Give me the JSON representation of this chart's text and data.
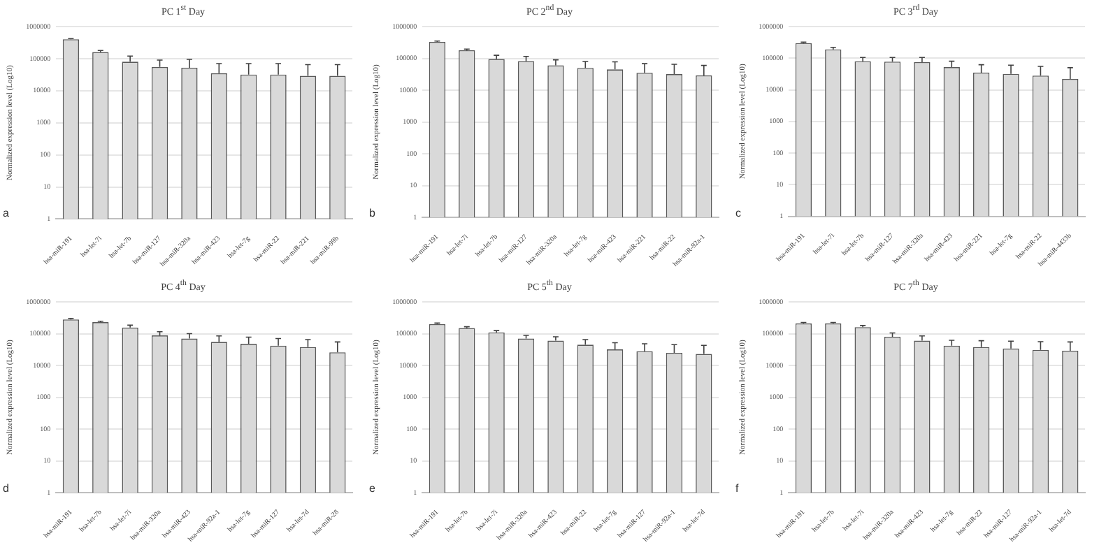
{
  "chart_data": [
    {
      "type": "bar",
      "title": "PC 1$^{st}$ Day",
      "ylabel": "Normalized expression level (Log10)",
      "annotations": [
        "a"
      ],
      "categories": [
        "hsa-miR-191",
        "hsa-let-7i",
        "hsa-let-7b",
        "hsa-miR-127",
        "hsa-miR-320a",
        "hsa-miR-423",
        "hsa-let-7g",
        "hsa-miR-22",
        "hsa-miR-221",
        "hsa-miR-99b"
      ],
      "values": [
        400000,
        160000,
        80000,
        55000,
        52000,
        35000,
        32000,
        32000,
        29000,
        29000
      ],
      "errors": [
        [
          400000,
          420000
        ],
        [
          160000,
          180000
        ],
        [
          80000,
          120000
        ],
        [
          55000,
          90000
        ],
        [
          52000,
          95000
        ],
        [
          35000,
          70000
        ],
        [
          32000,
          70000
        ],
        [
          32000,
          70000
        ],
        [
          29000,
          65000
        ],
        [
          29000,
          65000
        ]
      ],
      "color": "#d9d9d9",
      "log": true,
      "ylim": [
        1,
        1000000
      ],
      "yticks": [
        1,
        10,
        100,
        1000,
        10000,
        100000,
        1000000
      ],
      "grid": "y",
      "legend": false
    },
    {
      "type": "bar",
      "title": "PC 2$^{nd}$ Day",
      "ylabel": "Normalized expression level (Log10)",
      "annotations": [
        "b"
      ],
      "categories": [
        "hsa-miR-191",
        "hsa-let-7i",
        "hsa-let-7b",
        "hsa-miR-127",
        "hsa-miR-320a",
        "hsa-let-7g",
        "hsa-miR-423",
        "hsa-miR-221",
        "hsa-miR-22",
        "hsa-miR-92a-1"
      ],
      "values": [
        330000,
        180000,
        95000,
        82000,
        60000,
        50000,
        45000,
        35000,
        32000,
        29000
      ],
      "errors": [
        [
          330000,
          350000
        ],
        [
          180000,
          195000
        ],
        [
          95000,
          125000
        ],
        [
          82000,
          115000
        ],
        [
          60000,
          90000
        ],
        [
          50000,
          80000
        ],
        [
          45000,
          78000
        ],
        [
          35000,
          68000
        ],
        [
          32000,
          65000
        ],
        [
          29000,
          60000
        ]
      ],
      "color": "#d9d9d9",
      "log": true,
      "ylim": [
        1,
        1000000
      ],
      "yticks": [
        1,
        10,
        100,
        1000,
        10000,
        100000,
        1000000
      ],
      "grid": "y",
      "legend": false
    },
    {
      "type": "bar",
      "title": "PC 3$^{rd}$ Day",
      "ylabel": "Normalized expression level (Log10)",
      "annotations": [
        "c"
      ],
      "categories": [
        "hsa-miR-191",
        "hsa-let-7i",
        "hsa-let-7b",
        "hsa-miR-127",
        "hsa-miR-320a",
        "hsa-miR-423",
        "hsa-miR-221",
        "hsa-let-7g",
        "hsa-miR-22",
        "hsa-miR-4433b"
      ],
      "values": [
        300000,
        190000,
        80000,
        78000,
        75000,
        52000,
        35000,
        32000,
        28000,
        22000
      ],
      "errors": [
        [
          300000,
          320000
        ],
        [
          190000,
          220000
        ],
        [
          80000,
          105000
        ],
        [
          78000,
          105000
        ],
        [
          75000,
          105000
        ],
        [
          52000,
          80000
        ],
        [
          35000,
          62000
        ],
        [
          32000,
          60000
        ],
        [
          28000,
          55000
        ],
        [
          22000,
          50000
        ]
      ],
      "color": "#d9d9d9",
      "log": true,
      "ylim": [
        1,
        1000000
      ],
      "yticks": [
        1,
        10,
        100,
        1000,
        10000,
        100000,
        1000000
      ],
      "grid": "y",
      "legend": false
    },
    {
      "type": "bar",
      "title": "PC 4$^{th}$ Day",
      "ylabel": "Normalized expression level (Log10)",
      "annotations": [
        "d"
      ],
      "categories": [
        "hsa-miR-191",
        "hsa-let-7b",
        "hsa-let-7i",
        "hsa-miR-320a",
        "hsa-miR-423",
        "hsa-miR-92a-1",
        "hsa-let-7g",
        "hsa-miR-127",
        "hsa-let-7d",
        "hsa-miR-28"
      ],
      "values": [
        280000,
        230000,
        155000,
        88000,
        70000,
        55000,
        48000,
        42000,
        38000,
        26000
      ],
      "errors": [
        [
          280000,
          300000
        ],
        [
          230000,
          245000
        ],
        [
          155000,
          185000
        ],
        [
          88000,
          115000
        ],
        [
          70000,
          100000
        ],
        [
          55000,
          85000
        ],
        [
          48000,
          78000
        ],
        [
          42000,
          70000
        ],
        [
          38000,
          65000
        ],
        [
          26000,
          55000
        ]
      ],
      "color": "#d9d9d9",
      "log": true,
      "ylim": [
        1,
        1000000
      ],
      "yticks": [
        1,
        10,
        100,
        1000,
        10000,
        100000,
        1000000
      ],
      "grid": "y",
      "legend": false
    },
    {
      "type": "bar",
      "title": "PC 5$^{th}$ Day",
      "ylabel": "Normalized expression level (Log10)",
      "annotations": [
        "e"
      ],
      "categories": [
        "hsa-miR-191",
        "hsa-let-7b",
        "hsa-let-7i",
        "hsa-miR-320a",
        "hsa-miR-423",
        "hsa-miR-22",
        "hsa-let-7g",
        "hsa-miR-127",
        "hsa-miR-92a-1",
        "hsa-let-7d"
      ],
      "values": [
        200000,
        150000,
        110000,
        70000,
        60000,
        45000,
        32000,
        28000,
        25000,
        23000
      ],
      "errors": [
        [
          200000,
          215000
        ],
        [
          150000,
          165000
        ],
        [
          110000,
          125000
        ],
        [
          70000,
          88000
        ],
        [
          60000,
          80000
        ],
        [
          45000,
          65000
        ],
        [
          32000,
          52000
        ],
        [
          28000,
          48000
        ],
        [
          25000,
          45000
        ],
        [
          23000,
          43000
        ]
      ],
      "color": "#d9d9d9",
      "log": true,
      "ylim": [
        1,
        1000000
      ],
      "yticks": [
        1,
        10,
        100,
        1000,
        10000,
        100000,
        1000000
      ],
      "grid": "y",
      "legend": false
    },
    {
      "type": "bar",
      "title": "PC 7$^{th}$ Day",
      "ylabel": "Normalized expression level (Log10)",
      "annotations": [
        "f"
      ],
      "categories": [
        "hsa-miR-191",
        "hsa-let-7b",
        "hsa-let-7i",
        "hsa-miR-320a",
        "hsa-miR-423",
        "hsa-let-7g",
        "hsa-miR-22",
        "hsa-miR-127",
        "hsa-miR-92a-1",
        "hsa-let-7d"
      ],
      "values": [
        210000,
        210000,
        160000,
        80000,
        60000,
        42000,
        38000,
        34000,
        31000,
        29000
      ],
      "errors": [
        [
          210000,
          225000
        ],
        [
          210000,
          225000
        ],
        [
          160000,
          180000
        ],
        [
          80000,
          105000
        ],
        [
          60000,
          85000
        ],
        [
          42000,
          62000
        ],
        [
          38000,
          60000
        ],
        [
          34000,
          58000
        ],
        [
          31000,
          56000
        ],
        [
          29000,
          55000
        ]
      ],
      "color": "#d9d9d9",
      "log": true,
      "ylim": [
        1,
        1000000
      ],
      "yticks": [
        1,
        10,
        100,
        1000,
        10000,
        100000,
        1000000
      ],
      "grid": "y",
      "legend": false
    }
  ]
}
